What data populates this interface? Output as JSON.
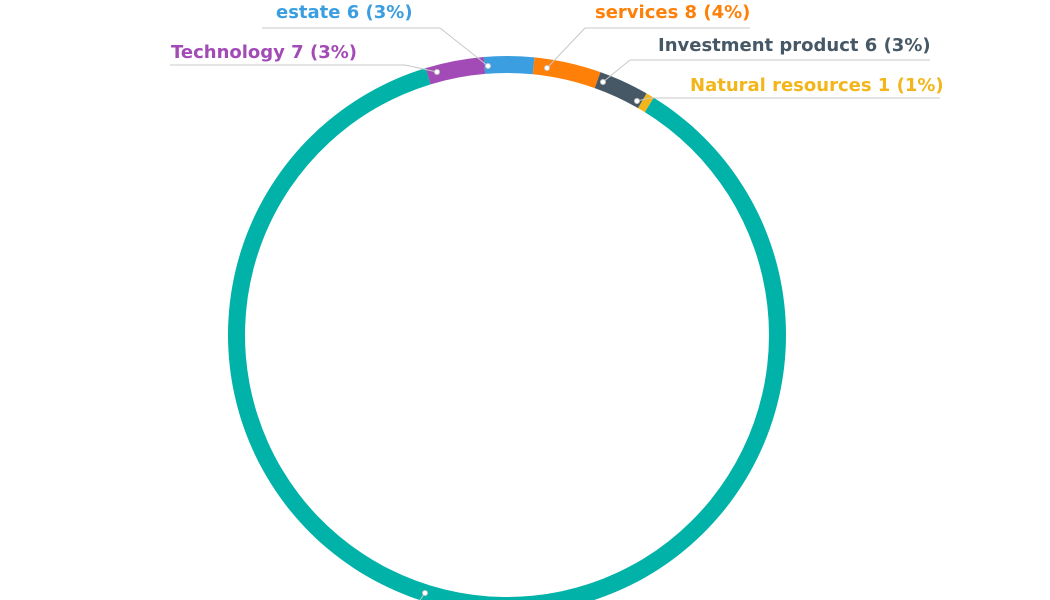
{
  "chart_data": {
    "type": "pie",
    "style": "donut",
    "title": "",
    "slices": [
      {
        "name": "Natural resources",
        "value": 1,
        "percent": "1%",
        "color": "#f2b61b"
      },
      {
        "name": "",
        "value": 179,
        "percent": "",
        "color": "#00b2a8"
      },
      {
        "name": "Technology",
        "value": 7,
        "percent": "3%",
        "color": "#a24bb6"
      },
      {
        "name": "estate",
        "value": 6,
        "percent": "3%",
        "color": "#3a9ee0"
      },
      {
        "name": "services",
        "value": 8,
        "percent": "4%",
        "color": "#ff8008"
      },
      {
        "name": "Investment product",
        "value": 6,
        "percent": "3%",
        "color": "#465865"
      }
    ],
    "labels": [
      {
        "slice": 4,
        "text": "services 8 (4%)"
      },
      {
        "slice": 3,
        "text": "estate 6 (3%)"
      },
      {
        "slice": 5,
        "text": "Investment product 6 (3%)"
      },
      {
        "slice": 2,
        "text": "Technology 7 (3%)"
      },
      {
        "slice": 0,
        "text": "Natural resources 1 (1%)"
      }
    ],
    "legend": "none",
    "grid": false
  }
}
